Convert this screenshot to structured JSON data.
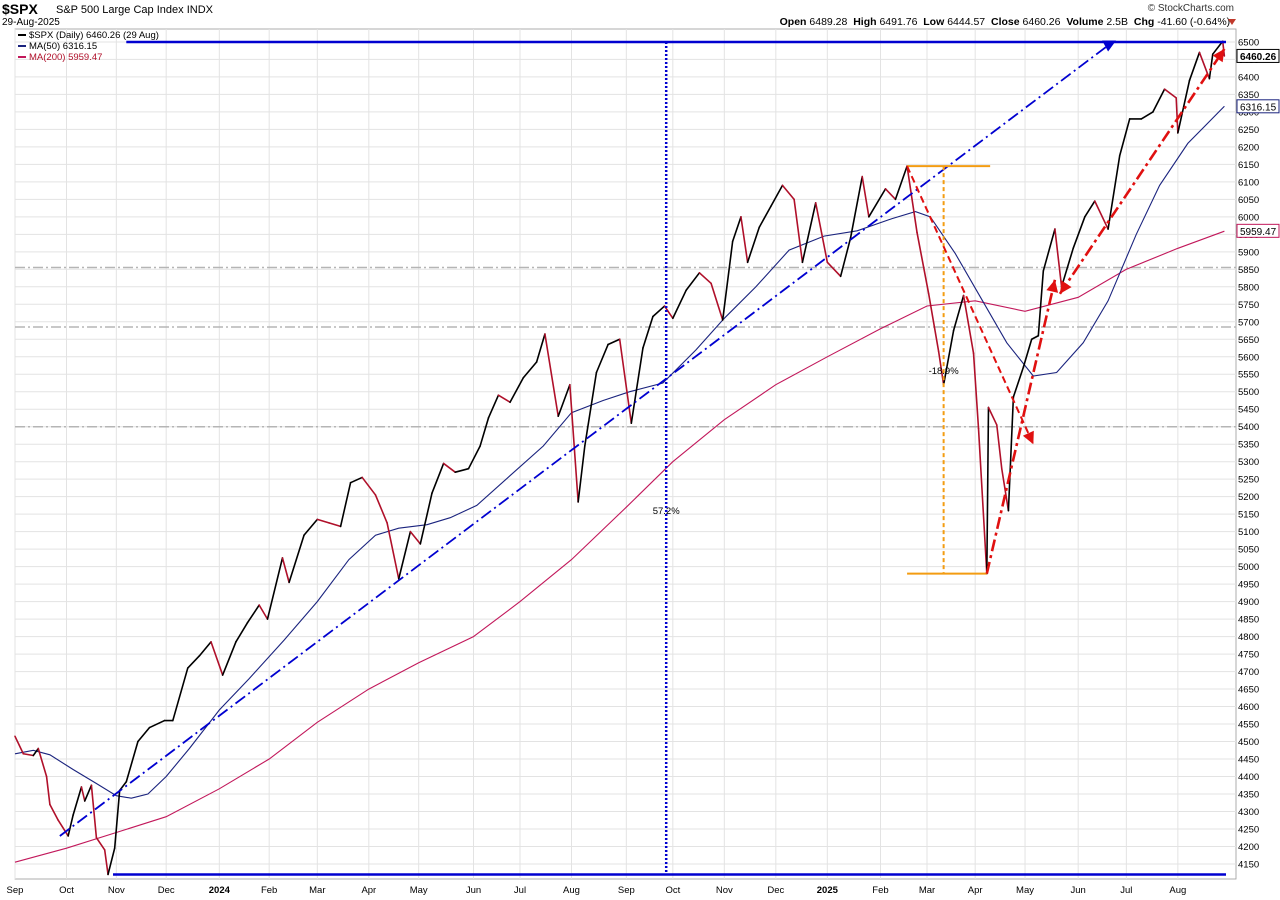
{
  "header": {
    "symbol": "$SPX",
    "description": "S&P 500 Large Cap Index",
    "exchange": "INDX",
    "date": "29-Aug-2025",
    "brand": "© StockCharts.com",
    "open_label": "Open",
    "open": "6489.28",
    "high_label": "High",
    "high": "6491.76",
    "low_label": "Low",
    "low": "6444.57",
    "close_label": "Close",
    "close": "6460.26",
    "volume_label": "Volume",
    "volume": "2.5B",
    "chg_label": "Chg",
    "chg": "-41.60 (-0.64%)"
  },
  "legend": {
    "price": "$SPX (Daily) 6460.26 (29 Aug)",
    "ma50": "MA(50) 6316.15",
    "ma200": "MA(200) 5959.47"
  },
  "colors": {
    "up": "#000000",
    "down": "#b0102a",
    "ma50": "#1a237e",
    "ma200": "#c2185b",
    "trend_blue": "#0000d0",
    "drop_orange": "#f39c12",
    "arrow_red": "#e01010",
    "grid": "#e3e3e3"
  },
  "chart_data": {
    "type": "line",
    "title": "$SPX S&P 500 Large Cap Index",
    "y_axis": {
      "side": "right",
      "ylim": [
        4100,
        6540
      ],
      "ticks_step": 50,
      "min_tick": 4150,
      "max_tick": 6500
    },
    "grid": true,
    "legend_position": "top-left",
    "x_axis": {
      "range": [
        "2023-09-01",
        "2025-09-05"
      ],
      "ticks": [
        {
          "date": "2023-09-01",
          "label": "Sep",
          "bold": false
        },
        {
          "date": "2023-10-02",
          "label": "Oct",
          "bold": false
        },
        {
          "date": "2023-11-01",
          "label": "Nov",
          "bold": false
        },
        {
          "date": "2023-12-01",
          "label": "Dec",
          "bold": false
        },
        {
          "date": "2024-01-02",
          "label": "2024",
          "bold": true
        },
        {
          "date": "2024-02-01",
          "label": "Feb",
          "bold": false
        },
        {
          "date": "2024-03-01",
          "label": "Mar",
          "bold": false
        },
        {
          "date": "2024-04-01",
          "label": "Apr",
          "bold": false
        },
        {
          "date": "2024-05-01",
          "label": "May",
          "bold": false
        },
        {
          "date": "2024-06-03",
          "label": "Jun",
          "bold": false
        },
        {
          "date": "2024-07-01",
          "label": "Jul",
          "bold": false
        },
        {
          "date": "2024-08-01",
          "label": "Aug",
          "bold": false
        },
        {
          "date": "2024-09-03",
          "label": "Sep",
          "bold": false
        },
        {
          "date": "2024-10-01",
          "label": "Oct",
          "bold": false
        },
        {
          "date": "2024-11-01",
          "label": "Nov",
          "bold": false
        },
        {
          "date": "2024-12-02",
          "label": "Dec",
          "bold": false
        },
        {
          "date": "2025-01-02",
          "label": "2025",
          "bold": true
        },
        {
          "date": "2025-02-03",
          "label": "Feb",
          "bold": false
        },
        {
          "date": "2025-03-03",
          "label": "Mar",
          "bold": false
        },
        {
          "date": "2025-04-01",
          "label": "Apr",
          "bold": false
        },
        {
          "date": "2025-05-01",
          "label": "May",
          "bold": false
        },
        {
          "date": "2025-06-02",
          "label": "Jun",
          "bold": false
        },
        {
          "date": "2025-07-01",
          "label": "Jul",
          "bold": false
        },
        {
          "date": "2025-08-01",
          "label": "Aug",
          "bold": false
        }
      ]
    },
    "series": [
      {
        "name": "$SPX (Daily)",
        "points": [
          [
            "2023-09-01",
            4515
          ],
          [
            "2023-09-06",
            4465
          ],
          [
            "2023-09-12",
            4460
          ],
          [
            "2023-09-15",
            4480
          ],
          [
            "2023-09-20",
            4400
          ],
          [
            "2023-09-22",
            4320
          ],
          [
            "2023-09-27",
            4275
          ],
          [
            "2023-10-03",
            4230
          ],
          [
            "2023-10-06",
            4290
          ],
          [
            "2023-10-11",
            4370
          ],
          [
            "2023-10-13",
            4330
          ],
          [
            "2023-10-17",
            4375
          ],
          [
            "2023-10-20",
            4225
          ],
          [
            "2023-10-25",
            4190
          ],
          [
            "2023-10-27",
            4120
          ],
          [
            "2023-10-31",
            4195
          ],
          [
            "2023-11-03",
            4360
          ],
          [
            "2023-11-07",
            4385
          ],
          [
            "2023-11-14",
            4500
          ],
          [
            "2023-11-21",
            4540
          ],
          [
            "2023-11-30",
            4560
          ],
          [
            "2023-12-05",
            4560
          ],
          [
            "2023-12-14",
            4710
          ],
          [
            "2023-12-21",
            4745
          ],
          [
            "2023-12-28",
            4785
          ],
          [
            "2024-01-04",
            4690
          ],
          [
            "2024-01-12",
            4785
          ],
          [
            "2024-01-19",
            4840
          ],
          [
            "2024-01-26",
            4890
          ],
          [
            "2024-01-31",
            4850
          ],
          [
            "2024-02-09",
            5025
          ],
          [
            "2024-02-13",
            4955
          ],
          [
            "2024-02-22",
            5090
          ],
          [
            "2024-03-01",
            5135
          ],
          [
            "2024-03-08",
            5125
          ],
          [
            "2024-03-15",
            5115
          ],
          [
            "2024-03-21",
            5240
          ],
          [
            "2024-03-28",
            5255
          ],
          [
            "2024-04-05",
            5205
          ],
          [
            "2024-04-12",
            5125
          ],
          [
            "2024-04-19",
            4965
          ],
          [
            "2024-04-26",
            5100
          ],
          [
            "2024-05-02",
            5065
          ],
          [
            "2024-05-09",
            5210
          ],
          [
            "2024-05-16",
            5295
          ],
          [
            "2024-05-23",
            5270
          ],
          [
            "2024-05-31",
            5280
          ],
          [
            "2024-06-07",
            5345
          ],
          [
            "2024-06-12",
            5425
          ],
          [
            "2024-06-18",
            5490
          ],
          [
            "2024-06-25",
            5470
          ],
          [
            "2024-07-03",
            5540
          ],
          [
            "2024-07-11",
            5585
          ],
          [
            "2024-07-16",
            5665
          ],
          [
            "2024-07-24",
            5430
          ],
          [
            "2024-07-31",
            5520
          ],
          [
            "2024-08-05",
            5185
          ],
          [
            "2024-08-09",
            5345
          ],
          [
            "2024-08-16",
            5555
          ],
          [
            "2024-08-23",
            5635
          ],
          [
            "2024-08-30",
            5650
          ],
          [
            "2024-09-06",
            5410
          ],
          [
            "2024-09-13",
            5625
          ],
          [
            "2024-09-19",
            5715
          ],
          [
            "2024-09-26",
            5745
          ],
          [
            "2024-10-01",
            5710
          ],
          [
            "2024-10-09",
            5790
          ],
          [
            "2024-10-17",
            5840
          ],
          [
            "2024-10-24",
            5810
          ],
          [
            "2024-10-31",
            5705
          ],
          [
            "2024-11-06",
            5930
          ],
          [
            "2024-11-11",
            6000
          ],
          [
            "2024-11-15",
            5870
          ],
          [
            "2024-11-22",
            5970
          ],
          [
            "2024-11-29",
            6030
          ],
          [
            "2024-12-06",
            6090
          ],
          [
            "2024-12-13",
            6050
          ],
          [
            "2024-12-18",
            5870
          ],
          [
            "2024-12-26",
            6040
          ],
          [
            "2025-01-02",
            5870
          ],
          [
            "2025-01-10",
            5830
          ],
          [
            "2025-01-16",
            5940
          ],
          [
            "2025-01-23",
            6115
          ],
          [
            "2025-01-27",
            6000
          ],
          [
            "2025-02-06",
            6080
          ],
          [
            "2025-02-12",
            6050
          ],
          [
            "2025-02-19",
            6145
          ],
          [
            "2025-02-25",
            5955
          ],
          [
            "2025-03-04",
            5780
          ],
          [
            "2025-03-10",
            5615
          ],
          [
            "2025-03-13",
            5520
          ],
          [
            "2025-03-19",
            5675
          ],
          [
            "2025-03-25",
            5775
          ],
          [
            "2025-03-31",
            5610
          ],
          [
            "2025-04-03",
            5395
          ],
          [
            "2025-04-08",
            4980
          ],
          [
            "2025-04-09",
            5455
          ],
          [
            "2025-04-14",
            5405
          ],
          [
            "2025-04-17",
            5280
          ],
          [
            "2025-04-21",
            5160
          ],
          [
            "2025-04-24",
            5485
          ],
          [
            "2025-04-30",
            5570
          ],
          [
            "2025-05-05",
            5650
          ],
          [
            "2025-05-09",
            5660
          ],
          [
            "2025-05-12",
            5845
          ],
          [
            "2025-05-19",
            5965
          ],
          [
            "2025-05-23",
            5800
          ],
          [
            "2025-05-30",
            5910
          ],
          [
            "2025-06-06",
            6000
          ],
          [
            "2025-06-12",
            6045
          ],
          [
            "2025-06-20",
            5965
          ],
          [
            "2025-06-27",
            6175
          ],
          [
            "2025-07-03",
            6280
          ],
          [
            "2025-07-10",
            6280
          ],
          [
            "2025-07-17",
            6300
          ],
          [
            "2025-07-24",
            6365
          ],
          [
            "2025-07-31",
            6340
          ],
          [
            "2025-08-01",
            6240
          ],
          [
            "2025-08-08",
            6390
          ],
          [
            "2025-08-14",
            6470
          ],
          [
            "2025-08-20",
            6395
          ],
          [
            "2025-08-22",
            6465
          ],
          [
            "2025-08-28",
            6502
          ],
          [
            "2025-08-29",
            6460
          ]
        ]
      },
      {
        "name": "MA(50)",
        "points": [
          [
            "2023-09-01",
            4465
          ],
          [
            "2023-09-12",
            4475
          ],
          [
            "2023-09-22",
            4462
          ],
          [
            "2023-10-06",
            4420
          ],
          [
            "2023-10-20",
            4380
          ],
          [
            "2023-11-01",
            4345
          ],
          [
            "2023-11-10",
            4338
          ],
          [
            "2023-11-20",
            4350
          ],
          [
            "2023-12-01",
            4400
          ],
          [
            "2023-12-15",
            4480
          ],
          [
            "2024-01-02",
            4590
          ],
          [
            "2024-01-20",
            4680
          ],
          [
            "2024-02-10",
            4790
          ],
          [
            "2024-03-01",
            4900
          ],
          [
            "2024-03-20",
            5020
          ],
          [
            "2024-04-05",
            5090
          ],
          [
            "2024-04-19",
            5110
          ],
          [
            "2024-05-06",
            5120
          ],
          [
            "2024-05-20",
            5140
          ],
          [
            "2024-06-05",
            5175
          ],
          [
            "2024-06-25",
            5260
          ],
          [
            "2024-07-15",
            5345
          ],
          [
            "2024-08-01",
            5440
          ],
          [
            "2024-08-20",
            5475
          ],
          [
            "2024-09-05",
            5500
          ],
          [
            "2024-09-25",
            5525
          ],
          [
            "2024-10-15",
            5620
          ],
          [
            "2024-11-01",
            5710
          ],
          [
            "2024-11-20",
            5800
          ],
          [
            "2024-12-10",
            5905
          ],
          [
            "2024-12-31",
            5945
          ],
          [
            "2025-01-20",
            5960
          ],
          [
            "2025-02-10",
            5995
          ],
          [
            "2025-02-24",
            6015
          ],
          [
            "2025-03-05",
            6000
          ],
          [
            "2025-03-20",
            5895
          ],
          [
            "2025-04-03",
            5780
          ],
          [
            "2025-04-20",
            5640
          ],
          [
            "2025-05-06",
            5545
          ],
          [
            "2025-05-20",
            5555
          ],
          [
            "2025-06-05",
            5640
          ],
          [
            "2025-06-20",
            5760
          ],
          [
            "2025-07-07",
            5950
          ],
          [
            "2025-07-21",
            6090
          ],
          [
            "2025-08-07",
            6210
          ],
          [
            "2025-08-29",
            6316
          ]
        ]
      },
      {
        "name": "MA(200)",
        "points": [
          [
            "2023-09-01",
            4155
          ],
          [
            "2023-10-02",
            4195
          ],
          [
            "2023-11-01",
            4240
          ],
          [
            "2023-12-01",
            4285
          ],
          [
            "2024-01-02",
            4365
          ],
          [
            "2024-02-01",
            4450
          ],
          [
            "2024-03-01",
            4555
          ],
          [
            "2024-04-01",
            4650
          ],
          [
            "2024-05-01",
            4725
          ],
          [
            "2024-06-03",
            4800
          ],
          [
            "2024-07-01",
            4900
          ],
          [
            "2024-08-01",
            5020
          ],
          [
            "2024-09-03",
            5170
          ],
          [
            "2024-10-01",
            5300
          ],
          [
            "2024-11-01",
            5420
          ],
          [
            "2024-12-02",
            5520
          ],
          [
            "2025-01-02",
            5600
          ],
          [
            "2025-02-03",
            5680
          ],
          [
            "2025-03-03",
            5745
          ],
          [
            "2025-04-01",
            5760
          ],
          [
            "2025-05-01",
            5730
          ],
          [
            "2025-06-02",
            5770
          ],
          [
            "2025-07-01",
            5850
          ],
          [
            "2025-08-01",
            5910
          ],
          [
            "2025-08-29",
            5959
          ]
        ]
      }
    ],
    "last_values": {
      "price": "6460.26",
      "ma50": "6316.15",
      "ma200": "5959.47"
    },
    "horizontal_levels": [
      5855,
      5685,
      5400
    ],
    "annotations": [
      {
        "label": "57.2%",
        "date": "2024-09-27",
        "y": 5150
      },
      {
        "label": "-18.9%",
        "date": "2025-03-13",
        "y": 5550
      }
    ]
  }
}
